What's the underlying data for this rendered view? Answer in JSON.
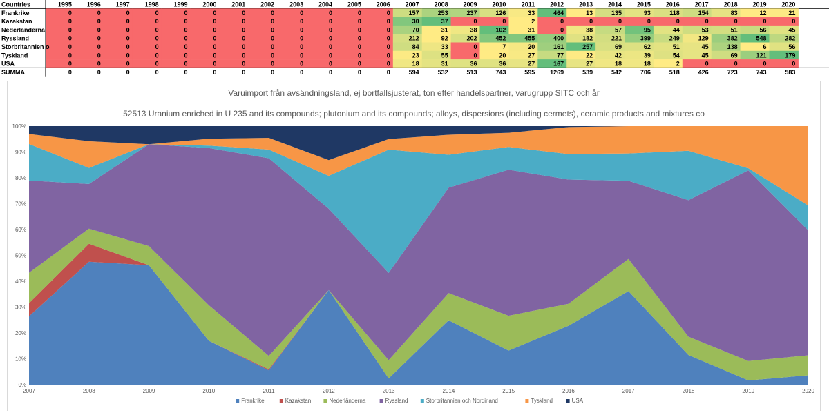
{
  "table": {
    "header_label": "Countries",
    "years": [
      "1995",
      "1996",
      "1997",
      "1998",
      "1999",
      "2000",
      "2001",
      "2002",
      "2003",
      "2004",
      "2005",
      "2006",
      "2007",
      "2008",
      "2009",
      "2010",
      "2011",
      "2012",
      "2013",
      "2014",
      "2015",
      "2016",
      "2017",
      "2018",
      "2019",
      "2020"
    ],
    "rows": [
      {
        "country": "Frankrike",
        "values": [
          0,
          0,
          0,
          0,
          0,
          0,
          0,
          0,
          0,
          0,
          0,
          0,
          157,
          253,
          237,
          126,
          33,
          464,
          13,
          135,
          93,
          118,
          154,
          83,
          12,
          21
        ]
      },
      {
        "country": "Kazakstan",
        "values": [
          0,
          0,
          0,
          0,
          0,
          0,
          0,
          0,
          0,
          0,
          0,
          0,
          30,
          37,
          0,
          0,
          2,
          0,
          0,
          0,
          0,
          0,
          0,
          0,
          0,
          0
        ]
      },
      {
        "country": "Nederländerna",
        "values": [
          0,
          0,
          0,
          0,
          0,
          0,
          0,
          0,
          0,
          0,
          0,
          0,
          70,
          31,
          38,
          102,
          31,
          0,
          38,
          57,
          95,
          44,
          53,
          51,
          56,
          45
        ]
      },
      {
        "country": "Ryssland",
        "values": [
          0,
          0,
          0,
          0,
          0,
          0,
          0,
          0,
          0,
          0,
          0,
          0,
          212,
          92,
          202,
          452,
          455,
          400,
          182,
          221,
          399,
          249,
          129,
          382,
          548,
          282
        ]
      },
      {
        "country": "Storbritannien o",
        "values": [
          0,
          0,
          0,
          0,
          0,
          0,
          0,
          0,
          0,
          0,
          0,
          0,
          84,
          33,
          0,
          7,
          20,
          161,
          257,
          69,
          62,
          51,
          45,
          138,
          6,
          56
        ]
      },
      {
        "country": "Tyskland",
        "values": [
          0,
          0,
          0,
          0,
          0,
          0,
          0,
          0,
          0,
          0,
          0,
          0,
          23,
          55,
          0,
          20,
          27,
          77,
          22,
          42,
          39,
          54,
          45,
          69,
          121,
          179
        ]
      },
      {
        "country": "USA",
        "values": [
          0,
          0,
          0,
          0,
          0,
          0,
          0,
          0,
          0,
          0,
          0,
          0,
          18,
          31,
          36,
          36,
          27,
          167,
          27,
          18,
          18,
          2,
          0,
          0,
          0,
          0
        ]
      }
    ],
    "sum_label": "SUMMA",
    "sums": [
      0,
      0,
      0,
      0,
      0,
      0,
      0,
      0,
      0,
      0,
      0,
      0,
      594,
      532,
      513,
      743,
      595,
      1269,
      539,
      542,
      706,
      518,
      426,
      723,
      743,
      583
    ]
  },
  "chart_data": {
    "type": "area",
    "stacking": "percent",
    "title": "Varuimport från avsändningsland, ej bortfallsjusterat, ton efter handelspartner, varugrupp SITC och år",
    "subtitle": "52513 Uranium enriched in U 235 and its compounds; plutonium and its compounds; alloys, dispersions (including cermets), ceramic products and mixtures co",
    "x": [
      "2007",
      "2008",
      "2009",
      "2010",
      "2011",
      "2012",
      "2013",
      "2014",
      "2015",
      "2016",
      "2017",
      "2018",
      "2019",
      "2020"
    ],
    "y_ticks": [
      "0%",
      "10%",
      "20%",
      "30%",
      "40%",
      "50%",
      "60%",
      "70%",
      "80%",
      "90%",
      "100%"
    ],
    "ylim": [
      0,
      100
    ],
    "legend_position": "bottom",
    "series": [
      {
        "name": "Frankrike",
        "color": "#4f81bd",
        "values": [
          157,
          253,
          237,
          126,
          33,
          464,
          13,
          135,
          93,
          118,
          154,
          83,
          12,
          21
        ]
      },
      {
        "name": "Kazakstan",
        "color": "#c0504d",
        "values": [
          30,
          37,
          0,
          0,
          2,
          0,
          0,
          0,
          0,
          0,
          0,
          0,
          0,
          0
        ]
      },
      {
        "name": "Nederländerna",
        "color": "#9bbb59",
        "values": [
          70,
          31,
          38,
          102,
          31,
          0,
          38,
          57,
          95,
          44,
          53,
          51,
          56,
          45
        ]
      },
      {
        "name": "Ryssland",
        "color": "#8064a2",
        "values": [
          212,
          92,
          202,
          452,
          455,
          400,
          182,
          221,
          399,
          249,
          129,
          382,
          548,
          282
        ]
      },
      {
        "name": "Storbritannien och Nordirland",
        "color": "#4bacc6",
        "values": [
          84,
          33,
          0,
          7,
          20,
          161,
          257,
          69,
          62,
          51,
          45,
          138,
          6,
          56
        ]
      },
      {
        "name": "Tyskland",
        "color": "#f79646",
        "values": [
          23,
          55,
          0,
          20,
          27,
          77,
          22,
          42,
          39,
          54,
          45,
          69,
          121,
          179
        ]
      },
      {
        "name": "USA",
        "color": "#1f3864",
        "values": [
          18,
          31,
          36,
          36,
          27,
          167,
          27,
          18,
          18,
          2,
          0,
          0,
          0,
          0
        ]
      }
    ]
  }
}
